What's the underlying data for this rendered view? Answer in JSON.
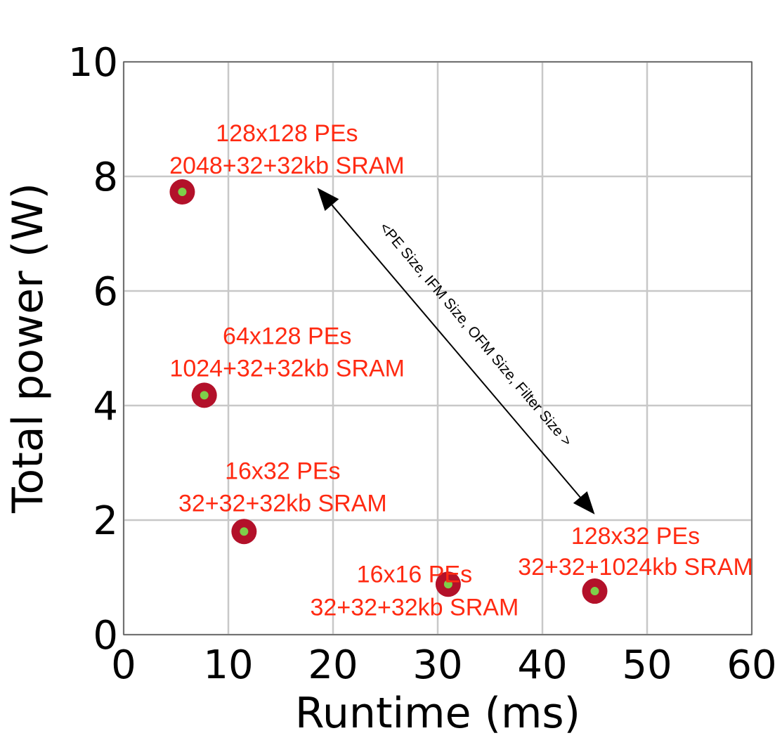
{
  "chart_data": {
    "type": "scatter",
    "title": "",
    "xlabel": "Runtime (ms)",
    "ylabel": "Total power (W)",
    "xlim": [
      0,
      60
    ],
    "ylim": [
      0,
      10
    ],
    "xticks": [
      0,
      10,
      20,
      30,
      40,
      50,
      60
    ],
    "yticks": [
      0,
      2,
      4,
      6,
      8,
      10
    ],
    "grid": true,
    "colors": {
      "marker_outer": "#b3112a",
      "marker_inner": "#7ecf4a",
      "label": "#ff2a12",
      "grid": "#c8c8c8"
    },
    "points": [
      {
        "x": 5.6,
        "y": 7.73,
        "line1": "128x128 PEs",
        "line2": "2048+32+32kb SRAM"
      },
      {
        "x": 7.7,
        "y": 4.18,
        "line1": "64x128 PEs",
        "line2": "1024+32+32kb SRAM"
      },
      {
        "x": 11.5,
        "y": 1.8,
        "line1": "16x32 PEs",
        "line2": "32+32+32kb SRAM"
      },
      {
        "x": 31.0,
        "y": 0.88,
        "line1": "16x16 PEs",
        "line2": "32+32+32kb SRAM"
      },
      {
        "x": 45.0,
        "y": 0.76,
        "line1": "128x32 PEs",
        "line2": "32+32+1024kb SRAM"
      }
    ],
    "annotation": {
      "text": "<PE Size, IFM Size, OFM Size, Filter Size >",
      "from": {
        "x": 18.5,
        "y": 7.8
      },
      "to": {
        "x": 45.0,
        "y": 2.1
      }
    }
  }
}
